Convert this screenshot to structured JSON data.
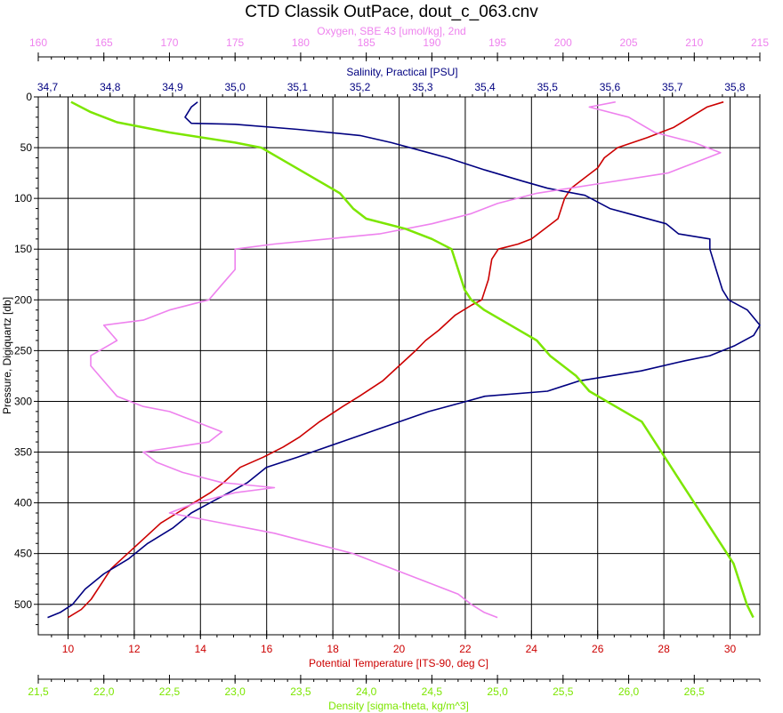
{
  "chart_data": {
    "type": "line",
    "title": "CTD Classik OutPace, dout_c_063.cnv",
    "y_axis": {
      "label": "Pressure, Digiquartz [db]",
      "range": [
        0,
        530
      ],
      "inverted": true,
      "ticks": [
        "0",
        "50",
        "100",
        "150",
        "200",
        "250",
        "300",
        "350",
        "400",
        "450",
        "500"
      ]
    },
    "axes": {
      "oxygen": {
        "label": "Oxygen, SBE 43 [umol/kg], 2nd",
        "range": [
          160,
          215
        ],
        "position": "top-1",
        "color": "#ee82ee",
        "ticks": [
          "160",
          "165",
          "170",
          "175",
          "180",
          "185",
          "190",
          "195",
          "200",
          "205",
          "210",
          "215"
        ]
      },
      "salinity": {
        "label": "Salinity, Practical [PSU]",
        "range": [
          34.685,
          35.84
        ],
        "position": "top-2",
        "color": "#000080",
        "ticks": [
          "34,7",
          "34,8",
          "34,9",
          "35,0",
          "35,1",
          "35,2",
          "35,3",
          "35,4",
          "35,5",
          "35,6",
          "35,7",
          "35,8"
        ]
      },
      "temperature": {
        "label": "Potential Temperature [ITS-90, deg C]",
        "range": [
          9.1,
          30.9
        ],
        "position": "bottom-1",
        "color": "#cc0000",
        "ticks": [
          "10",
          "12",
          "14",
          "16",
          "18",
          "20",
          "22",
          "24",
          "26",
          "28",
          "30"
        ]
      },
      "density": {
        "label": "Density [sigma-theta, kg/m^3]",
        "range": [
          21.5,
          27.0
        ],
        "position": "bottom-2",
        "color": "#7ce600",
        "ticks": [
          "21,5",
          "22,0",
          "22,5",
          "23,0",
          "23,5",
          "24,0",
          "24,5",
          "25,0",
          "25,5",
          "26,0",
          "26,5"
        ]
      }
    },
    "grid": true,
    "series": [
      {
        "name": "Potential Temperature",
        "axis": "temperature",
        "color": "#cc0000",
        "points": [
          [
            29.8,
            5
          ],
          [
            29.3,
            10
          ],
          [
            28.8,
            20
          ],
          [
            28.3,
            30
          ],
          [
            27.5,
            40
          ],
          [
            26.6,
            50
          ],
          [
            26.2,
            60
          ],
          [
            26.0,
            70
          ],
          [
            25.6,
            80
          ],
          [
            25.2,
            90
          ],
          [
            25.0,
            100
          ],
          [
            24.9,
            110
          ],
          [
            24.8,
            120
          ],
          [
            24.4,
            130
          ],
          [
            24.0,
            140
          ],
          [
            23.6,
            145
          ],
          [
            23.0,
            150
          ],
          [
            22.8,
            160
          ],
          [
            22.7,
            180
          ],
          [
            22.5,
            200
          ],
          [
            22.2,
            205
          ],
          [
            21.7,
            215
          ],
          [
            21.2,
            230
          ],
          [
            20.8,
            240
          ],
          [
            20.5,
            250
          ],
          [
            20.0,
            265
          ],
          [
            19.5,
            280
          ],
          [
            18.8,
            295
          ],
          [
            18.3,
            305
          ],
          [
            17.6,
            320
          ],
          [
            17.0,
            335
          ],
          [
            16.5,
            345
          ],
          [
            15.9,
            355
          ],
          [
            15.2,
            365
          ],
          [
            14.7,
            380
          ],
          [
            14.3,
            390
          ],
          [
            13.8,
            400
          ],
          [
            13.3,
            410
          ],
          [
            12.8,
            420
          ],
          [
            12.3,
            435
          ],
          [
            11.8,
            450
          ],
          [
            11.3,
            465
          ],
          [
            11.0,
            480
          ],
          [
            10.7,
            495
          ],
          [
            10.4,
            505
          ],
          [
            10.0,
            513
          ]
        ]
      },
      {
        "name": "Salinity",
        "axis": "salinity",
        "color": "#000080",
        "points": [
          [
            34.94,
            5
          ],
          [
            34.93,
            10
          ],
          [
            34.92,
            20
          ],
          [
            34.93,
            26
          ],
          [
            35.0,
            27
          ],
          [
            35.1,
            32
          ],
          [
            35.2,
            38
          ],
          [
            35.25,
            45
          ],
          [
            35.31,
            55
          ],
          [
            35.34,
            60
          ],
          [
            35.4,
            72
          ],
          [
            35.46,
            83
          ],
          [
            35.5,
            90
          ],
          [
            35.56,
            97
          ],
          [
            35.6,
            110
          ],
          [
            35.63,
            115
          ],
          [
            35.69,
            125
          ],
          [
            35.71,
            135
          ],
          [
            35.76,
            140
          ],
          [
            35.76,
            150
          ],
          [
            35.77,
            170
          ],
          [
            35.78,
            190
          ],
          [
            35.79,
            200
          ],
          [
            35.82,
            210
          ],
          [
            35.84,
            225
          ],
          [
            35.83,
            235
          ],
          [
            35.8,
            245
          ],
          [
            35.76,
            255
          ],
          [
            35.72,
            260
          ],
          [
            35.65,
            270
          ],
          [
            35.55,
            280
          ],
          [
            35.5,
            290
          ],
          [
            35.4,
            295
          ],
          [
            35.37,
            300
          ],
          [
            35.31,
            310
          ],
          [
            35.24,
            325
          ],
          [
            35.17,
            340
          ],
          [
            35.1,
            355
          ],
          [
            35.05,
            365
          ],
          [
            35.02,
            380
          ],
          [
            34.99,
            390
          ],
          [
            34.96,
            400
          ],
          [
            34.93,
            410
          ],
          [
            34.9,
            425
          ],
          [
            34.86,
            440
          ],
          [
            34.83,
            455
          ],
          [
            34.79,
            470
          ],
          [
            34.76,
            485
          ],
          [
            34.74,
            500
          ],
          [
            34.72,
            508
          ],
          [
            34.7,
            513
          ]
        ]
      },
      {
        "name": "Oxygen",
        "axis": "oxygen",
        "color": "#ee82ee",
        "points": [
          [
            204,
            5
          ],
          [
            202,
            10
          ],
          [
            205,
            20
          ],
          [
            207,
            35
          ],
          [
            210,
            45
          ],
          [
            211,
            50
          ],
          [
            212,
            55
          ],
          [
            210,
            65
          ],
          [
            208,
            75
          ],
          [
            203,
            85
          ],
          [
            198,
            95
          ],
          [
            195,
            105
          ],
          [
            193,
            115
          ],
          [
            190,
            125
          ],
          [
            186,
            135
          ],
          [
            178,
            145
          ],
          [
            175,
            150
          ],
          [
            175,
            170
          ],
          [
            174,
            185
          ],
          [
            173,
            200
          ],
          [
            170,
            210
          ],
          [
            168,
            220
          ],
          [
            165,
            225
          ],
          [
            166,
            240
          ],
          [
            164,
            255
          ],
          [
            164,
            265
          ],
          [
            165,
            280
          ],
          [
            166,
            295
          ],
          [
            168,
            305
          ],
          [
            170,
            310
          ],
          [
            172,
            320
          ],
          [
            174,
            330
          ],
          [
            173,
            340
          ],
          [
            168,
            350
          ],
          [
            169,
            360
          ],
          [
            171,
            370
          ],
          [
            174,
            380
          ],
          [
            178,
            385
          ],
          [
            175,
            390
          ],
          [
            172,
            400
          ],
          [
            170,
            410
          ],
          [
            174,
            420
          ],
          [
            178,
            430
          ],
          [
            181,
            440
          ],
          [
            184,
            450
          ],
          [
            186,
            460
          ],
          [
            188,
            470
          ],
          [
            190,
            480
          ],
          [
            192,
            490
          ],
          [
            193,
            500
          ],
          [
            194,
            508
          ],
          [
            195,
            513
          ]
        ]
      },
      {
        "name": "Density",
        "axis": "density",
        "color": "#7ce600",
        "points": [
          [
            21.75,
            5
          ],
          [
            21.9,
            15
          ],
          [
            22.1,
            25
          ],
          [
            22.5,
            35
          ],
          [
            23.0,
            45
          ],
          [
            23.2,
            50
          ],
          [
            23.4,
            65
          ],
          [
            23.6,
            80
          ],
          [
            23.8,
            95
          ],
          [
            23.9,
            110
          ],
          [
            24.0,
            120
          ],
          [
            24.3,
            130
          ],
          [
            24.5,
            140
          ],
          [
            24.65,
            150
          ],
          [
            24.7,
            170
          ],
          [
            24.75,
            190
          ],
          [
            24.8,
            200
          ],
          [
            24.9,
            210
          ],
          [
            25.1,
            225
          ],
          [
            25.3,
            240
          ],
          [
            25.4,
            255
          ],
          [
            25.6,
            275
          ],
          [
            25.7,
            290
          ],
          [
            25.9,
            305
          ],
          [
            26.1,
            320
          ],
          [
            26.2,
            340
          ],
          [
            26.3,
            360
          ],
          [
            26.4,
            380
          ],
          [
            26.5,
            400
          ],
          [
            26.6,
            420
          ],
          [
            26.7,
            440
          ],
          [
            26.8,
            460
          ],
          [
            26.85,
            480
          ],
          [
            26.9,
            500
          ],
          [
            26.95,
            513
          ]
        ]
      }
    ]
  }
}
